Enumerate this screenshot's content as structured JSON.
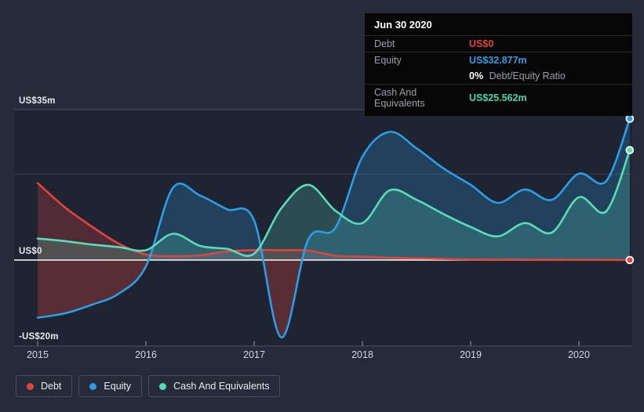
{
  "tooltip": {
    "date": "Jun 30 2020",
    "rows": [
      {
        "label": "Debt",
        "value": "US$0",
        "color": "#e2433c"
      },
      {
        "label": "Equity",
        "value": "US$32.877m",
        "color": "#2d9de6"
      },
      {
        "label": "Cash And Equivalents",
        "value": "US$25.562m",
        "color": "#45d6b0"
      }
    ],
    "ratio_bold": "0%",
    "ratio_rest": "Debt/Equity Ratio"
  },
  "legend": [
    {
      "label": "Debt",
      "color": "#e2433c"
    },
    {
      "label": "Equity",
      "color": "#2d9de6"
    },
    {
      "label": "Cash And Equivalents",
      "color": "#52dcb4"
    }
  ],
  "colors": {
    "page_bg": "#252b38",
    "plot_bg": "#1e2432",
    "grid_major": "#4a5263",
    "grid_minor": "#39414e",
    "zero_line": "#fbfbfd",
    "tick": "#747b8a",
    "negative_equity_fill": "#e2433c"
  },
  "chart_data": {
    "type": "area",
    "x": [
      2015,
      2015.25,
      2015.5,
      2015.75,
      2016,
      2016.25,
      2016.5,
      2016.75,
      2017,
      2017.25,
      2017.5,
      2017.75,
      2018,
      2018.25,
      2018.5,
      2018.75,
      2019,
      2019.25,
      2019.5,
      2019.75,
      2020,
      2020.25,
      2020.47
    ],
    "series": [
      {
        "name": "Debt",
        "color": "#e2433c",
        "fill_alpha": 0.26,
        "values": [
          17.9,
          12.3,
          7.8,
          3.8,
          1.3,
          0.9,
          1.1,
          2.0,
          2.3,
          2.3,
          2.2,
          1.0,
          0.8,
          0.55,
          0.4,
          0.25,
          0.15,
          0.1,
          0.1,
          0.08,
          0.06,
          0.04,
          0
        ]
      },
      {
        "name": "Equity",
        "color": "#2d9de6",
        "fill_alpha": 0.24,
        "negative_color": "#e2433c",
        "negative_alpha": 0.3,
        "values": [
          -13.4,
          -12.4,
          -10.4,
          -7.8,
          -1.5,
          16.8,
          15.0,
          11.8,
          9.2,
          -18.0,
          4.8,
          7.5,
          24.0,
          29.8,
          26.0,
          21.3,
          17.5,
          13.3,
          16.4,
          14.0,
          20.1,
          18.3,
          32.877
        ]
      },
      {
        "name": "Cash And Equivalents",
        "color": "#5bdcb9",
        "fill_alpha": 0.22,
        "values": [
          5.0,
          4.4,
          3.6,
          3.0,
          2.3,
          6.1,
          3.3,
          2.6,
          1.5,
          12.0,
          17.5,
          11.5,
          8.6,
          16.2,
          14.0,
          10.7,
          7.7,
          5.5,
          8.6,
          6.4,
          14.6,
          11.3,
          25.562
        ]
      }
    ],
    "ylim": [
      -20,
      35
    ],
    "x_ticks": [
      {
        "value": 2015,
        "label": "2015"
      },
      {
        "value": 2016,
        "label": "2016"
      },
      {
        "value": 2017,
        "label": "2017"
      },
      {
        "value": 2018,
        "label": "2018"
      },
      {
        "value": 2019,
        "label": "2019"
      },
      {
        "value": 2020,
        "label": "2020"
      }
    ],
    "y_gridlines": [
      {
        "value": 35,
        "label": "US$35m"
      },
      {
        "value": 20,
        "label": ""
      },
      {
        "value": 0,
        "label": "US$0"
      },
      {
        "value": -20,
        "label": "-US$20m"
      }
    ],
    "legend_position": "bottom-left",
    "grid": "horizontal-only"
  }
}
